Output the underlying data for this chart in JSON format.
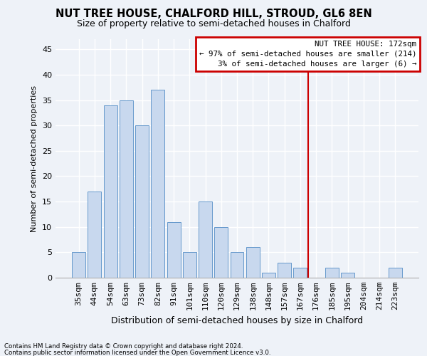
{
  "title": "NUT TREE HOUSE, CHALFORD HILL, STROUD, GL6 8EN",
  "subtitle": "Size of property relative to semi-detached houses in Chalford",
  "xlabel": "Distribution of semi-detached houses by size in Chalford",
  "ylabel": "Number of semi-detached properties",
  "categories": [
    "35sqm",
    "44sqm",
    "54sqm",
    "63sqm",
    "73sqm",
    "82sqm",
    "91sqm",
    "101sqm",
    "110sqm",
    "120sqm",
    "129sqm",
    "138sqm",
    "148sqm",
    "157sqm",
    "167sqm",
    "176sqm",
    "185sqm",
    "195sqm",
    "204sqm",
    "214sqm",
    "223sqm"
  ],
  "values": [
    5,
    17,
    34,
    35,
    30,
    37,
    11,
    5,
    15,
    10,
    5,
    6,
    1,
    3,
    2,
    0,
    2,
    1,
    0,
    0,
    2
  ],
  "bar_color": "#c8d8ee",
  "bar_edge_color": "#6699cc",
  "ylim": [
    0,
    47
  ],
  "yticks": [
    0,
    5,
    10,
    15,
    20,
    25,
    30,
    35,
    40,
    45
  ],
  "property_line_x": 14.5,
  "annotation_title": "NUT TREE HOUSE: 172sqm",
  "annotation_line1": "← 97% of semi-detached houses are smaller (214)",
  "annotation_line2": "3% of semi-detached houses are larger (6) →",
  "annotation_box_color": "#ffffff",
  "annotation_border_color": "#cc0000",
  "vline_color": "#cc0000",
  "footer1": "Contains HM Land Registry data © Crown copyright and database right 2024.",
  "footer2": "Contains public sector information licensed under the Open Government Licence v3.0.",
  "bg_color": "#eef2f8",
  "grid_color": "#ffffff",
  "title_fontsize": 10.5,
  "subtitle_fontsize": 9,
  "ylabel_fontsize": 8,
  "xlabel_fontsize": 9,
  "tick_fontsize": 8,
  "annotation_fontsize": 7.8,
  "footer_fontsize": 6.2
}
